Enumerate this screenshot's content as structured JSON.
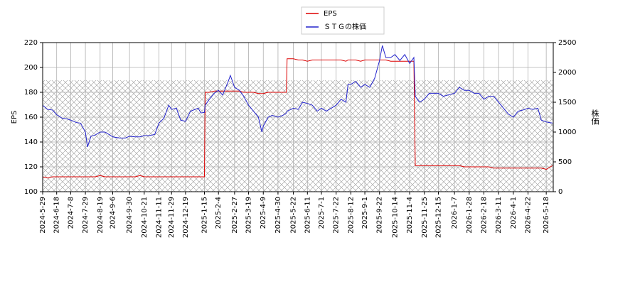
{
  "chart_data": {
    "type": "line",
    "x_label": null,
    "y_label": "EPS",
    "y2_label": "株価",
    "x": [
      "2024-5-29",
      "2024-6-5",
      "2024-6-12",
      "2024-6-18",
      "2024-6-26",
      "2024-7-3",
      "2024-7-8",
      "2024-7-16",
      "2024-7-22",
      "2024-7-29",
      "2024-8-1",
      "2024-8-6",
      "2024-8-12",
      "2024-8-19",
      "2024-8-26",
      "2024-9-2",
      "2024-9-6",
      "2024-9-16",
      "2024-9-24",
      "2024-9-30",
      "2024-10-8",
      "2024-10-15",
      "2024-10-21",
      "2024-10-28",
      "2024-11-5",
      "2024-11-11",
      "2024-11-18",
      "2024-11-25",
      "2024-11-29",
      "2024-12-6",
      "2024-12-12",
      "2024-12-19",
      "2024-12-26",
      "2025-1-6",
      "2025-1-10",
      "2025-1-15",
      "2025-1-16",
      "2025-1-22",
      "2025-1-29",
      "2025-2-4",
      "2025-2-10",
      "2025-2-18",
      "2025-2-21",
      "2025-2-27",
      "2025-3-6",
      "2025-3-12",
      "2025-3-19",
      "2025-3-26",
      "2025-4-2",
      "2025-4-7",
      "2025-4-9",
      "2025-4-16",
      "2025-4-22",
      "2025-4-30",
      "2025-5-7",
      "2025-5-12",
      "2025-5-13",
      "2025-5-22",
      "2025-5-29",
      "2025-6-4",
      "2025-6-11",
      "2025-6-18",
      "2025-6-25",
      "2025-7-1",
      "2025-7-8",
      "2025-7-15",
      "2025-7-22",
      "2025-7-29",
      "2025-8-5",
      "2025-8-8",
      "2025-8-12",
      "2025-8-19",
      "2025-8-26",
      "2025-9-1",
      "2025-9-8",
      "2025-9-15",
      "2025-9-22",
      "2025-9-26",
      "2025-10-1",
      "2025-10-8",
      "2025-10-14",
      "2025-10-21",
      "2025-10-28",
      "2025-11-4",
      "2025-11-10",
      "2025-11-12",
      "2025-11-18",
      "2025-11-25",
      "2025-12-2",
      "2025-12-9",
      "2025-12-15",
      "2025-12-22",
      "2026-1-7",
      "2026-1-14",
      "2026-1-21",
      "2026-1-28",
      "2026-2-4",
      "2026-2-11",
      "2026-2-18",
      "2026-2-25",
      "2026-3-4",
      "2026-3-11",
      "2026-3-18",
      "2026-3-25",
      "2026-4-1",
      "2026-4-8",
      "2026-4-15",
      "2026-4-22",
      "2026-4-29",
      "2026-5-6",
      "2026-5-11",
      "2026-5-18",
      "2026-5-27"
    ],
    "series": [
      {
        "name": "EPS",
        "color": "#dd0000",
        "axis": "y",
        "values": [
          112,
          111,
          112,
          112,
          112,
          112,
          112,
          112,
          112,
          112,
          112,
          112,
          112,
          113,
          112,
          112,
          112,
          112,
          112,
          112,
          112,
          113,
          112,
          112,
          112,
          112,
          112,
          112,
          112,
          112,
          112,
          112,
          112,
          112,
          112,
          112,
          180,
          180,
          181,
          181,
          181,
          181,
          181,
          181,
          181,
          180,
          180,
          180,
          179,
          179,
          179,
          180,
          180,
          180,
          180,
          180,
          207,
          207,
          206,
          206,
          205,
          206,
          206,
          206,
          206,
          206,
          206,
          206,
          205,
          206,
          206,
          206,
          205,
          206,
          206,
          206,
          206,
          206,
          206,
          205,
          205,
          205,
          205,
          205,
          205,
          121,
          121,
          121,
          121,
          121,
          121,
          121,
          121,
          121,
          120,
          120,
          120,
          120,
          120,
          120,
          119,
          119,
          119,
          119,
          119,
          119,
          119,
          119,
          119,
          119,
          119,
          118,
          121
        ]
      },
      {
        "name": "ＳＴＧの株価",
        "color": "#2222cc",
        "axis": "y2",
        "values": [
          1450,
          1380,
          1370,
          1290,
          1230,
          1220,
          1200,
          1160,
          1150,
          1000,
          750,
          930,
          950,
          1000,
          1000,
          950,
          920,
          900,
          900,
          930,
          920,
          920,
          940,
          940,
          960,
          1150,
          1230,
          1450,
          1380,
          1400,
          1200,
          1180,
          1350,
          1400,
          1320,
          1330,
          1450,
          1550,
          1650,
          1700,
          1620,
          1850,
          1950,
          1750,
          1700,
          1600,
          1450,
          1350,
          1250,
          1000,
          1100,
          1250,
          1280,
          1250,
          1280,
          1320,
          1350,
          1400,
          1380,
          1500,
          1480,
          1450,
          1350,
          1400,
          1350,
          1400,
          1450,
          1550,
          1500,
          1800,
          1800,
          1850,
          1750,
          1800,
          1750,
          1900,
          2200,
          2450,
          2250,
          2250,
          2300,
          2200,
          2300,
          2150,
          2250,
          1600,
          1500,
          1550,
          1650,
          1650,
          1650,
          1600,
          1650,
          1750,
          1700,
          1700,
          1650,
          1650,
          1550,
          1600,
          1600,
          1500,
          1400,
          1300,
          1250,
          1350,
          1370,
          1400,
          1380,
          1400,
          1200,
          1170,
          1150
        ]
      }
    ],
    "xlim": [
      "2024-5-29",
      "2026-5-28"
    ],
    "xticks": [
      "2024-5-29",
      "2024-6-18",
      "2024-7-8",
      "2024-7-29",
      "2024-8-19",
      "2024-9-6",
      "2024-9-30",
      "2024-10-21",
      "2024-11-11",
      "2024-11-29",
      "2024-12-19",
      "2025-1-15",
      "2025-2-4",
      "2025-2-27",
      "2025-3-19",
      "2025-4-9",
      "2025-4-30",
      "2025-5-22",
      "2025-6-11",
      "2025-7-1",
      "2025-7-22",
      "2025-8-12",
      "2025-9-1",
      "2025-9-22",
      "2025-10-14",
      "2025-11-4",
      "2025-11-25",
      "2025-12-15",
      "2026-1-7",
      "2026-1-28",
      "2026-2-18",
      "2026-3-11",
      "2026-4-1",
      "2026-4-22",
      "2026-5-18"
    ],
    "ylim": [
      100,
      220
    ],
    "yticks": [
      100,
      120,
      140,
      160,
      180,
      200,
      220
    ],
    "y2lim": [
      0,
      2500
    ],
    "y2ticks": [
      0,
      500,
      1000,
      1500,
      2000,
      2500
    ],
    "grid": true,
    "legend": "upper center"
  }
}
